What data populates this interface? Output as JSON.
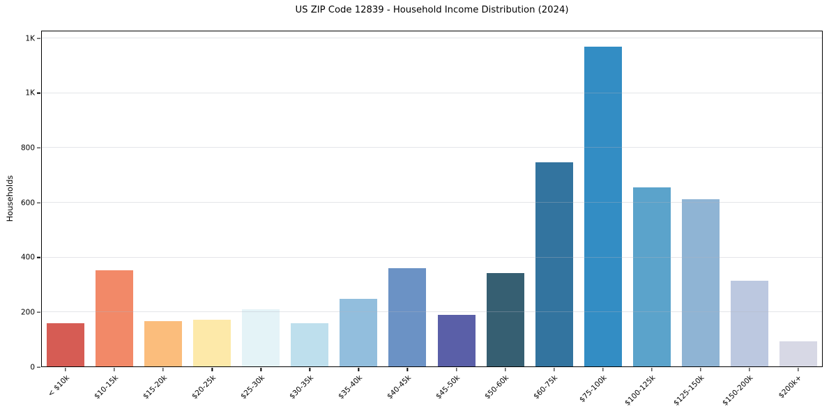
{
  "chart_data": {
    "type": "bar",
    "title": "US ZIP Code 12839 - Household Income Distribution (2024)",
    "xlabel": "",
    "ylabel": "Households",
    "categories": [
      "< $10k",
      "$10-15k",
      "$15-20k",
      "$20-25k",
      "$25-30k",
      "$30-35k",
      "$35-40k",
      "$40-45k",
      "$45-50k",
      "$50-60k",
      "$60-75k",
      "$75-100k",
      "$100-125k",
      "$125-150k",
      "$150-200k",
      "$200k+"
    ],
    "values": [
      160,
      354,
      168,
      172,
      212,
      159,
      250,
      362,
      190,
      344,
      747,
      1170,
      657,
      612,
      316,
      95
    ],
    "bar_colors": [
      "#d65c54",
      "#f28968",
      "#fbbd7c",
      "#fde9a9",
      "#e4f3f7",
      "#bedfed",
      "#92bedd",
      "#6b92c5",
      "#5a5fa8",
      "#365f72",
      "#33749f",
      "#338dc4",
      "#5ba3cb",
      "#8fb4d4",
      "#bcc8e0",
      "#d7d8e5"
    ],
    "ylim": [
      0,
      1228
    ],
    "y_ticks": [
      {
        "value": 0,
        "label": "0"
      },
      {
        "value": 200,
        "label": "200"
      },
      {
        "value": 400,
        "label": "400"
      },
      {
        "value": 600,
        "label": "600"
      },
      {
        "value": 800,
        "label": "800"
      },
      {
        "value": 1000,
        "label": "1K"
      },
      {
        "value": 1200,
        "label": "1K"
      }
    ],
    "grid": "horizontal",
    "legend": "none",
    "background": "#ffffff",
    "frame_color": "#000000"
  }
}
